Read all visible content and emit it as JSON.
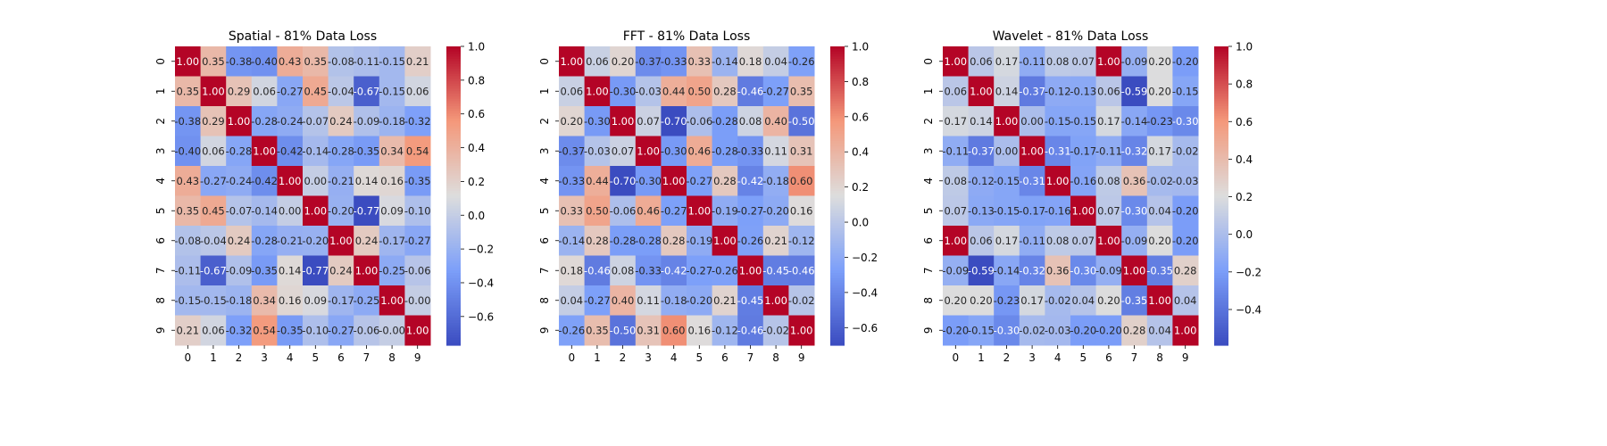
{
  "chart_data": [
    {
      "type": "heatmap",
      "title": "Spatial - 81% Data Loss",
      "xlabels": [
        "0",
        "1",
        "2",
        "3",
        "4",
        "5",
        "6",
        "7",
        "8",
        "9"
      ],
      "ylabels": [
        "0",
        "1",
        "2",
        "3",
        "4",
        "5",
        "6",
        "7",
        "8",
        "9"
      ],
      "colormap": "coolwarm",
      "vmin": -0.77,
      "vmax": 1.0,
      "colorbar_ticks": [
        -0.6,
        -0.4,
        -0.2,
        0.0,
        0.2,
        0.4,
        0.6,
        0.8,
        1.0
      ],
      "matrix": [
        [
          1.0,
          0.35,
          -0.38,
          -0.4,
          0.43,
          0.35,
          -0.08,
          -0.11,
          -0.15,
          0.21
        ],
        [
          0.35,
          1.0,
          0.29,
          0.06,
          -0.27,
          0.45,
          -0.04,
          -0.67,
          -0.15,
          0.06
        ],
        [
          -0.38,
          0.29,
          1.0,
          -0.28,
          -0.24,
          -0.07,
          0.24,
          -0.09,
          -0.18,
          -0.32
        ],
        [
          -0.4,
          0.06,
          -0.28,
          1.0,
          -0.42,
          -0.14,
          -0.28,
          -0.35,
          0.34,
          0.54
        ],
        [
          0.43,
          -0.27,
          -0.24,
          -0.42,
          1.0,
          0.0,
          -0.21,
          0.14,
          0.16,
          -0.35
        ],
        [
          0.35,
          0.45,
          -0.07,
          -0.14,
          0.0,
          1.0,
          -0.2,
          -0.77,
          0.09,
          -0.1
        ],
        [
          -0.08,
          -0.04,
          0.24,
          -0.28,
          -0.21,
          -0.2,
          1.0,
          0.24,
          -0.17,
          -0.27
        ],
        [
          -0.11,
          -0.67,
          -0.09,
          -0.35,
          0.14,
          -0.77,
          0.24,
          1.0,
          -0.25,
          -0.06
        ],
        [
          -0.15,
          -0.15,
          -0.18,
          0.34,
          0.16,
          0.09,
          -0.17,
          -0.25,
          1.0,
          -0.0
        ],
        [
          0.21,
          0.06,
          -0.32,
          0.54,
          -0.35,
          -0.1,
          -0.27,
          -0.06,
          -0.0,
          1.0
        ]
      ]
    },
    {
      "type": "heatmap",
      "title": "FFT - 81% Data Loss",
      "xlabels": [
        "0",
        "1",
        "2",
        "3",
        "4",
        "5",
        "6",
        "7",
        "8",
        "9"
      ],
      "ylabels": [
        "0",
        "1",
        "2",
        "3",
        "4",
        "5",
        "6",
        "7",
        "8",
        "9"
      ],
      "colormap": "coolwarm",
      "vmin": -0.7,
      "vmax": 1.0,
      "colorbar_ticks": [
        -0.6,
        -0.4,
        -0.2,
        0.0,
        0.2,
        0.4,
        0.6,
        0.8,
        1.0
      ],
      "matrix": [
        [
          1.0,
          0.06,
          0.2,
          -0.37,
          -0.33,
          0.33,
          -0.14,
          0.18,
          0.04,
          -0.26
        ],
        [
          0.06,
          1.0,
          -0.3,
          -0.03,
          0.44,
          0.5,
          0.28,
          -0.46,
          -0.27,
          0.35
        ],
        [
          0.2,
          -0.3,
          1.0,
          0.07,
          -0.7,
          -0.06,
          -0.28,
          0.08,
          0.4,
          -0.5
        ],
        [
          -0.37,
          -0.03,
          0.07,
          1.0,
          -0.3,
          0.46,
          -0.28,
          -0.33,
          0.11,
          0.31
        ],
        [
          -0.33,
          0.44,
          -0.7,
          -0.3,
          1.0,
          -0.27,
          0.28,
          -0.42,
          -0.18,
          0.6
        ],
        [
          0.33,
          0.5,
          -0.06,
          0.46,
          -0.27,
          1.0,
          -0.19,
          -0.27,
          -0.2,
          0.16
        ],
        [
          -0.14,
          0.28,
          -0.28,
          -0.28,
          0.28,
          -0.19,
          1.0,
          -0.26,
          0.21,
          -0.12
        ],
        [
          0.18,
          -0.46,
          0.08,
          -0.33,
          -0.42,
          -0.27,
          -0.26,
          1.0,
          -0.45,
          -0.46
        ],
        [
          0.04,
          -0.27,
          0.4,
          0.11,
          -0.18,
          -0.2,
          0.21,
          -0.45,
          1.0,
          -0.02
        ],
        [
          -0.26,
          0.35,
          -0.5,
          0.31,
          0.6,
          0.16,
          -0.12,
          -0.46,
          -0.02,
          1.0
        ]
      ]
    },
    {
      "type": "heatmap",
      "title": "Wavelet - 81% Data Loss",
      "xlabels": [
        "0",
        "1",
        "2",
        "3",
        "4",
        "5",
        "6",
        "7",
        "8",
        "9"
      ],
      "ylabels": [
        "0",
        "1",
        "2",
        "3",
        "4",
        "5",
        "6",
        "7",
        "8",
        "9"
      ],
      "colormap": "coolwarm",
      "vmin": -0.59,
      "vmax": 1.0,
      "colorbar_ticks": [
        -0.4,
        -0.2,
        0.0,
        0.2,
        0.4,
        0.6,
        0.8,
        1.0
      ],
      "matrix": [
        [
          1.0,
          0.06,
          0.17,
          -0.11,
          0.08,
          0.07,
          1.0,
          -0.09,
          0.2,
          -0.2
        ],
        [
          0.06,
          1.0,
          0.14,
          -0.37,
          -0.12,
          -0.13,
          0.06,
          -0.59,
          0.2,
          -0.15
        ],
        [
          0.17,
          0.14,
          1.0,
          0.0,
          -0.15,
          -0.15,
          0.17,
          -0.14,
          -0.23,
          -0.3
        ],
        [
          -0.11,
          -0.37,
          0.0,
          1.0,
          -0.31,
          -0.17,
          -0.11,
          -0.32,
          0.17,
          -0.02
        ],
        [
          0.08,
          -0.12,
          -0.15,
          -0.31,
          1.0,
          -0.16,
          0.08,
          0.36,
          -0.02,
          -0.03
        ],
        [
          0.07,
          -0.13,
          -0.15,
          -0.17,
          -0.16,
          1.0,
          0.07,
          -0.3,
          0.04,
          -0.2
        ],
        [
          1.0,
          0.06,
          0.17,
          -0.11,
          0.08,
          0.07,
          1.0,
          -0.09,
          0.2,
          -0.2
        ],
        [
          -0.09,
          -0.59,
          -0.14,
          -0.32,
          0.36,
          -0.3,
          -0.09,
          1.0,
          -0.35,
          0.28
        ],
        [
          0.2,
          0.2,
          -0.23,
          0.17,
          -0.02,
          0.04,
          0.2,
          -0.35,
          1.0,
          0.04
        ],
        [
          -0.2,
          -0.15,
          -0.3,
          -0.02,
          -0.03,
          -0.2,
          -0.2,
          0.28,
          0.04,
          1.0
        ]
      ]
    }
  ]
}
